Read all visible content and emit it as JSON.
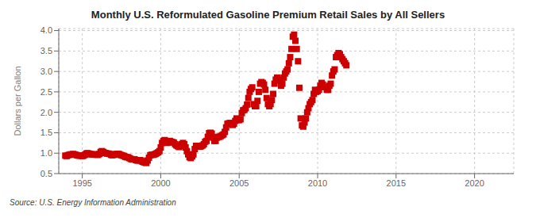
{
  "chart_data": {
    "type": "scatter",
    "title": "Monthly U.S. Reformulated Gasoline Premium Retail Sales by All Sellers",
    "y_label": "Dollars per Gallon",
    "annotations": [
      "Source: U.S. Energy Information Administration"
    ],
    "color": "#cc0000",
    "marker": "square",
    "grid": true,
    "xlim": [
      1993.5,
      2022.5
    ],
    "ylim": [
      0.5,
      4.05
    ],
    "xticks": [
      1995,
      2000,
      2005,
      2010,
      2015,
      2020
    ],
    "yticks": [
      0.5,
      {
        "value": 1.0,
        "label": "1.0"
      },
      1.5,
      {
        "value": 2.0,
        "label": "2.0"
      },
      2.5,
      {
        "value": 3.0,
        "label": "3.0"
      },
      3.5,
      {
        "value": 4.0,
        "label": "4.0"
      }
    ],
    "x": [
      1993.917,
      1994.0,
      1994.083,
      1994.167,
      1994.25,
      1994.333,
      1994.417,
      1994.5,
      1994.583,
      1994.667,
      1994.75,
      1994.833,
      1994.917,
      1995.0,
      1995.083,
      1995.167,
      1995.25,
      1995.333,
      1995.417,
      1995.5,
      1995.583,
      1995.667,
      1995.75,
      1995.833,
      1995.917,
      1996.0,
      1996.083,
      1996.167,
      1996.25,
      1996.333,
      1996.417,
      1996.5,
      1996.583,
      1996.667,
      1996.75,
      1996.833,
      1996.917,
      1997.0,
      1997.083,
      1997.167,
      1997.25,
      1997.333,
      1997.417,
      1997.5,
      1997.583,
      1997.667,
      1997.75,
      1997.833,
      1997.917,
      1998.0,
      1998.083,
      1998.167,
      1998.25,
      1998.333,
      1998.417,
      1998.5,
      1998.583,
      1998.667,
      1998.75,
      1998.833,
      1998.917,
      1999.0,
      1999.083,
      1999.167,
      1999.25,
      1999.333,
      1999.417,
      1999.5,
      1999.583,
      1999.667,
      1999.75,
      1999.833,
      1999.917,
      2000.0,
      2000.083,
      2000.167,
      2000.25,
      2000.333,
      2000.417,
      2000.5,
      2000.583,
      2000.667,
      2000.75,
      2000.833,
      2000.917,
      2001.0,
      2001.083,
      2001.167,
      2001.25,
      2001.333,
      2001.417,
      2001.5,
      2001.583,
      2001.667,
      2001.75,
      2001.833,
      2001.917,
      2002.0,
      2002.083,
      2002.167,
      2002.25,
      2002.333,
      2002.417,
      2002.5,
      2002.583,
      2002.667,
      2002.75,
      2002.833,
      2002.917,
      2003.0,
      2003.083,
      2003.167,
      2003.25,
      2003.333,
      2003.417,
      2003.5,
      2003.583,
      2003.667,
      2003.75,
      2003.833,
      2003.917,
      2004.0,
      2004.083,
      2004.167,
      2004.25,
      2004.333,
      2004.417,
      2004.5,
      2004.583,
      2004.667,
      2004.75,
      2004.833,
      2004.917,
      2005.0,
      2005.083,
      2005.167,
      2005.25,
      2005.333,
      2005.417,
      2005.5,
      2005.583,
      2005.667,
      2005.75,
      2005.833,
      2005.917,
      2006.0,
      2006.083,
      2006.167,
      2006.25,
      2006.333,
      2006.417,
      2006.5,
      2006.583,
      2006.667,
      2006.75,
      2006.833,
      2006.917,
      2007.0,
      2007.083,
      2007.167,
      2007.25,
      2007.333,
      2007.417,
      2007.5,
      2007.583,
      2007.667,
      2007.75,
      2007.833,
      2007.917,
      2008.0,
      2008.083,
      2008.167,
      2008.25,
      2008.333,
      2008.417,
      2008.5,
      2008.583,
      2008.667,
      2008.75,
      2008.833,
      2008.917,
      2009.0,
      2009.083,
      2009.167,
      2009.25,
      2009.333,
      2009.417,
      2009.5,
      2009.583,
      2009.667,
      2009.75,
      2009.833,
      2009.917,
      2010.0,
      2010.083,
      2010.167,
      2010.25,
      2010.333,
      2010.417,
      2010.5,
      2010.583,
      2010.667,
      2010.75,
      2010.833,
      2010.917,
      2011.0,
      2011.083,
      2011.167,
      2011.25,
      2011.333,
      2011.417,
      2011.5,
      2011.583,
      2011.667,
      2011.75,
      2011.833
    ],
    "values": [
      0.94,
      0.93,
      0.95,
      0.96,
      0.97,
      0.97,
      0.98,
      0.97,
      0.96,
      0.95,
      0.94,
      0.94,
      0.94,
      0.93,
      0.94,
      0.96,
      0.99,
      1.0,
      0.99,
      0.98,
      0.97,
      0.97,
      0.97,
      0.97,
      0.96,
      0.96,
      0.98,
      1.03,
      1.05,
      1.03,
      1.01,
      1.0,
      0.99,
      0.99,
      0.98,
      0.96,
      0.95,
      0.96,
      0.97,
      0.98,
      0.98,
      0.98,
      0.96,
      0.95,
      0.94,
      0.93,
      0.91,
      0.9,
      0.9,
      0.88,
      0.86,
      0.85,
      0.85,
      0.85,
      0.83,
      0.82,
      0.82,
      0.83,
      0.82,
      0.79,
      0.78,
      0.77,
      0.76,
      0.82,
      0.89,
      0.95,
      0.96,
      0.96,
      0.97,
      0.98,
      1.0,
      1.02,
      1.05,
      1.14,
      1.25,
      1.3,
      1.32,
      1.28,
      1.25,
      1.27,
      1.3,
      1.28,
      1.27,
      1.26,
      1.22,
      1.19,
      1.17,
      1.15,
      1.18,
      1.22,
      1.25,
      1.22,
      1.14,
      1.05,
      0.97,
      0.9,
      0.88,
      0.92,
      0.97,
      1.1,
      1.18,
      1.17,
      1.17,
      1.16,
      1.17,
      1.19,
      1.22,
      1.28,
      1.3,
      1.4,
      1.49,
      1.5,
      1.48,
      1.38,
      1.3,
      1.3,
      1.38,
      1.4,
      1.4,
      1.42,
      1.44,
      1.46,
      1.52,
      1.63,
      1.72,
      1.73,
      1.74,
      1.72,
      1.69,
      1.72,
      1.79,
      1.85,
      1.81,
      1.81,
      1.83,
      1.98,
      2.05,
      2.06,
      2.1,
      2.19,
      2.35,
      2.5,
      2.57,
      2.61,
      2.2,
      2.15,
      2.15,
      2.28,
      2.5,
      2.7,
      2.74,
      2.72,
      2.68,
      2.55,
      2.35,
      2.2,
      2.15,
      2.2,
      2.3,
      2.45,
      2.7,
      2.8,
      2.85,
      2.8,
      2.78,
      2.65,
      2.7,
      2.85,
      2.95,
      3.0,
      3.05,
      3.2,
      3.35,
      3.55,
      3.85,
      3.9,
      3.75,
      3.55,
      3.25,
      2.6,
      1.85,
      1.68,
      1.65,
      1.75,
      1.85,
      2.0,
      2.1,
      2.2,
      2.25,
      2.3,
      2.45,
      2.55,
      2.5,
      2.52,
      2.55,
      2.65,
      2.72,
      2.68,
      2.62,
      2.62,
      2.55,
      2.55,
      2.65,
      2.7,
      2.9,
      3.0,
      3.05,
      3.35,
      3.4,
      3.45,
      3.42,
      3.35,
      3.3,
      3.25,
      3.2,
      3.15
    ]
  }
}
